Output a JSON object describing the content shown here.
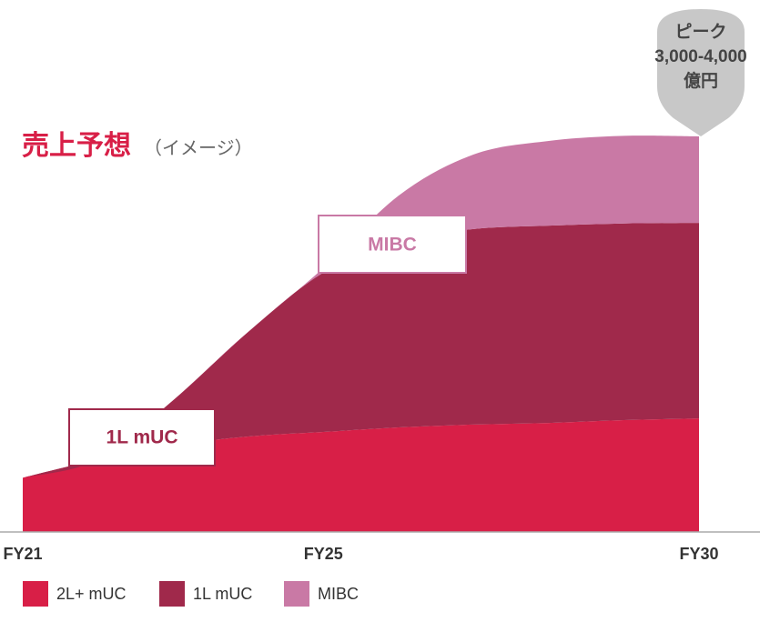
{
  "chart_data": {
    "type": "stacked-area",
    "title": "売上予想",
    "subtitle": "（イメージ）",
    "annotation": [
      "ピーク",
      "3,000-4,000",
      "億円"
    ],
    "categories": [
      "FY21",
      null,
      null,
      null,
      "FY25",
      null,
      null,
      null,
      null,
      "FY30"
    ],
    "series": [
      {
        "name": "2L+ mUC",
        "color": "#d81f47",
        "values": [
          480,
          640,
          765,
          845,
          885,
          925,
          950,
          965,
          990,
          1005
        ]
      },
      {
        "name": "1L mUC",
        "color": "#a0294b",
        "values": [
          0,
          0,
          400,
          925,
          1410,
          1650,
          1730,
          1745,
          1740,
          1730
        ]
      },
      {
        "name": "MIBC",
        "color": "#c979a5",
        "values": [
          0,
          0,
          0,
          0,
          40,
          400,
          660,
          750,
          775,
          765
        ]
      }
    ],
    "ylim": [
      0,
      3500
    ]
  }
}
